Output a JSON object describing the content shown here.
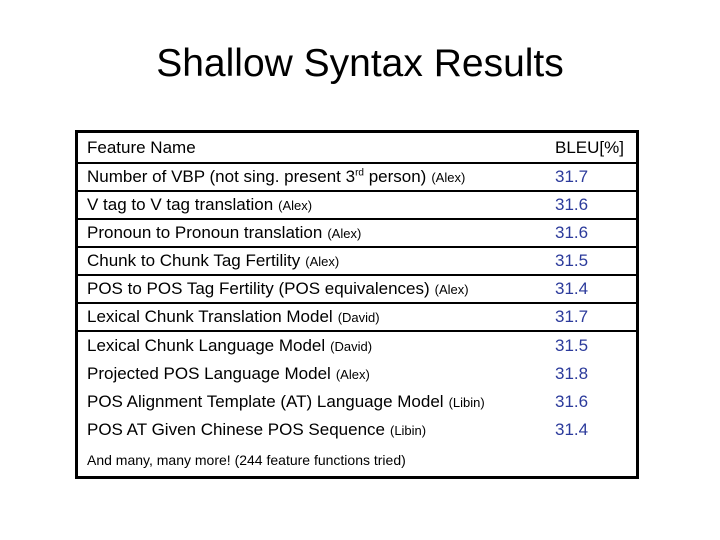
{
  "slide": {
    "title": "Shallow Syntax Results"
  },
  "table": {
    "header": {
      "feature": "Feature Name",
      "bleu": "BLEU[%]"
    },
    "rows": [
      {
        "text": "Number of VBP (not sing. present 3",
        "sup": "rd",
        "text2": " person)",
        "by": "(Alex)",
        "bleu": "31.7",
        "divider": true
      },
      {
        "text": "V tag to V tag translation",
        "sup": "",
        "text2": "",
        "by": "(Alex)",
        "bleu": "31.6",
        "divider": true
      },
      {
        "text": "Pronoun to Pronoun translation",
        "sup": "",
        "text2": "",
        "by": "(Alex)",
        "bleu": "31.6",
        "divider": true
      },
      {
        "text": "Chunk to Chunk Tag Fertility",
        "sup": "",
        "text2": "",
        "by": "(Alex)",
        "bleu": "31.5",
        "divider": true
      },
      {
        "text": "POS to POS Tag Fertility (POS equivalences)",
        "sup": "",
        "text2": "",
        "by": "(Alex)",
        "bleu": "31.4",
        "divider": true
      },
      {
        "text": "Lexical Chunk Translation Model",
        "sup": "",
        "text2": "",
        "by": "(David)",
        "bleu": "31.7",
        "divider": true
      },
      {
        "text": "Lexical Chunk Language Model",
        "sup": "",
        "text2": "",
        "by": "(David)",
        "bleu": "31.5",
        "divider": false
      },
      {
        "text": "Projected POS Language Model",
        "sup": "",
        "text2": "",
        "by": "(Alex)",
        "bleu": "31.8",
        "divider": false
      },
      {
        "text": "POS Alignment Template (AT) Language Model",
        "sup": "",
        "text2": "",
        "by": "(Libin)",
        "bleu": "31.6",
        "divider": false
      },
      {
        "text": "POS AT Given Chinese POS Sequence",
        "sup": "",
        "text2": "",
        "by": "(Libin)",
        "bleu": "31.4",
        "divider": false
      }
    ],
    "footer": "And many, many more! (244 feature functions tried)"
  },
  "colors": {
    "bleu_value": "#2B3A9B",
    "text": "#000000",
    "border": "#000000",
    "background": "#FFFFFF"
  }
}
